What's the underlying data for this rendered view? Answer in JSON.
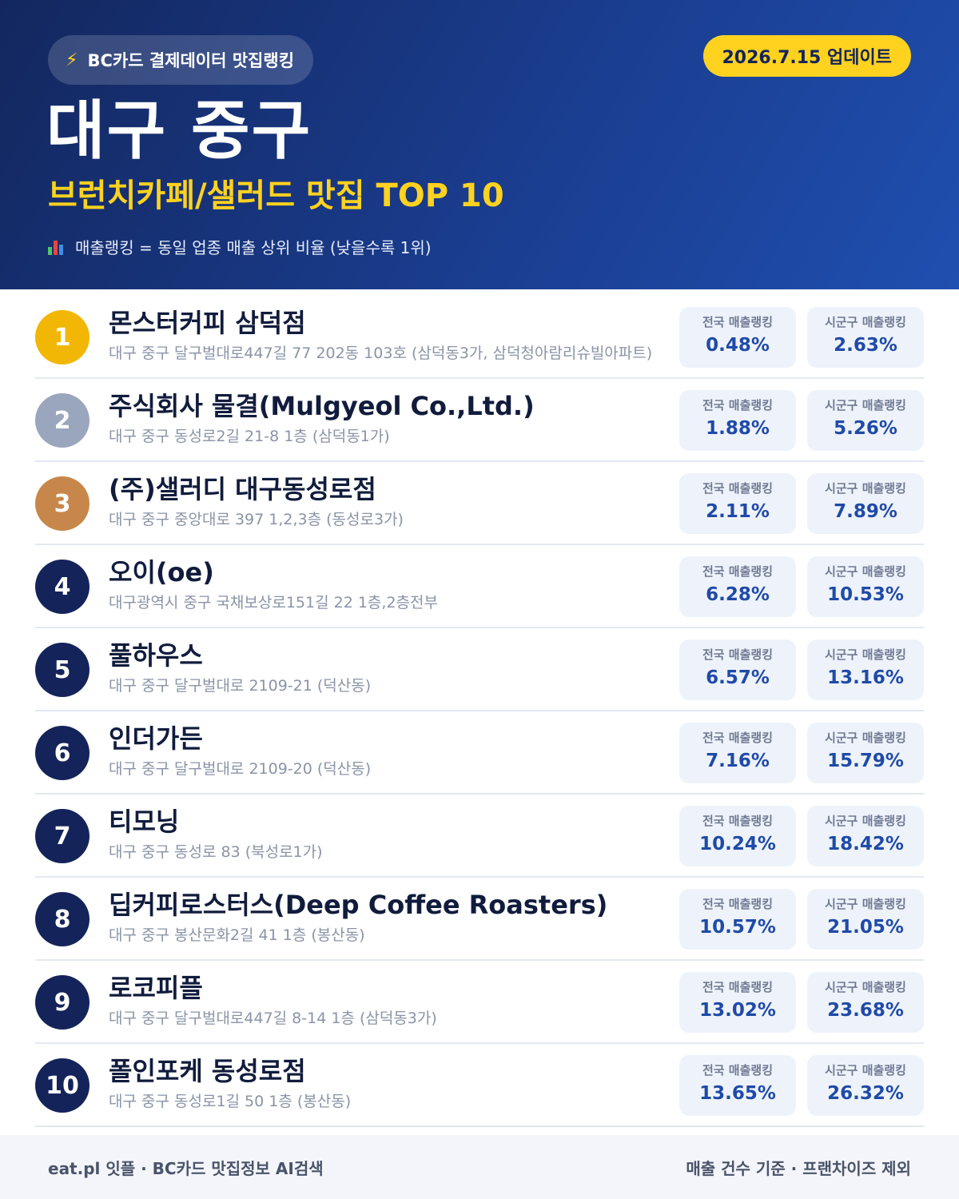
{
  "header": {
    "source_badge": "BC카드 결제데이터 맛집랭킹",
    "update_badge": "2026.7.15 업데이트",
    "title": "대구 중구",
    "subtitle": "브런치카페/샐러드 맛집 TOP 10",
    "note": "매출랭킹 = 동일 업종 매출 상위 비율 (낮을수록 1위)",
    "icons": [
      "bolt-icon",
      "bar-chart-icon"
    ]
  },
  "colors": {
    "header_bg": "#1a3d8f",
    "accent_yellow": "#ffd21f",
    "gold": "#f2b705",
    "silver": "#9aa6bd",
    "bronze": "#c8874a",
    "navy": "#14245a",
    "value_blue": "#1f4aa8"
  },
  "stat_labels": {
    "national": "전국 매출랭킹",
    "local": "시군구 매출랭킹"
  },
  "items": [
    {
      "rank": "1",
      "name": "몬스터커피 삼덕점",
      "address": "대구 중구 달구벌대로447길 77 202동 103호 (삼덕동3가, 삼덕청아람리슈빌아파트)",
      "national": "0.48%",
      "local": "2.63%",
      "color": "#f2b705"
    },
    {
      "rank": "2",
      "name": "주식회사 물결(Mulgyeol Co.,Ltd.)",
      "address": "대구 중구 동성로2길 21-8 1층 (삼덕동1가)",
      "national": "1.88%",
      "local": "5.26%",
      "color": "#9aa6bd"
    },
    {
      "rank": "3",
      "name": "(주)샐러디 대구동성로점",
      "address": "대구 중구 중앙대로 397 1,2,3층 (동성로3가)",
      "national": "2.11%",
      "local": "7.89%",
      "color": "#c8874a"
    },
    {
      "rank": "4",
      "name": "오이(oe)",
      "address": "대구광역시 중구 국채보상로151길 22 1층,2층전부",
      "national": "6.28%",
      "local": "10.53%",
      "color": "#14245a"
    },
    {
      "rank": "5",
      "name": "풀하우스",
      "address": "대구 중구 달구벌대로 2109-21 (덕산동)",
      "national": "6.57%",
      "local": "13.16%",
      "color": "#14245a"
    },
    {
      "rank": "6",
      "name": "인더가든",
      "address": "대구 중구 달구벌대로 2109-20 (덕산동)",
      "national": "7.16%",
      "local": "15.79%",
      "color": "#14245a"
    },
    {
      "rank": "7",
      "name": "티모닝",
      "address": "대구 중구 동성로 83 (북성로1가)",
      "national": "10.24%",
      "local": "18.42%",
      "color": "#14245a"
    },
    {
      "rank": "8",
      "name": "딥커피로스터스(Deep Coffee Roasters)",
      "address": "대구 중구 봉산문화2길 41 1층 (봉산동)",
      "national": "10.57%",
      "local": "21.05%",
      "color": "#14245a"
    },
    {
      "rank": "9",
      "name": "로코피플",
      "address": "대구 중구 달구벌대로447길 8-14 1층 (삼덕동3가)",
      "national": "13.02%",
      "local": "23.68%",
      "color": "#14245a"
    },
    {
      "rank": "10",
      "name": "폴인포케 동성로점",
      "address": "대구 중구 동성로1길 50 1층 (봉산동)",
      "national": "13.65%",
      "local": "26.32%",
      "color": "#14245a"
    }
  ],
  "footer": {
    "left": "eat.pl 잇플 · BC카드 맛집정보 AI검색",
    "right": "매출 건수 기준 · 프랜차이즈 제외"
  }
}
